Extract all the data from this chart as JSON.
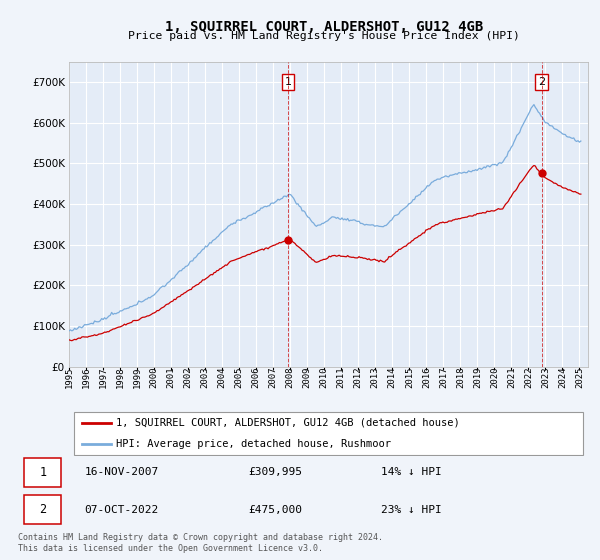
{
  "title": "1, SQUIRREL COURT, ALDERSHOT, GU12 4GB",
  "subtitle": "Price paid vs. HM Land Registry's House Price Index (HPI)",
  "background_color": "#f0f4fa",
  "plot_bg_color": "#e4ecf7",
  "grid_color": "#ffffff",
  "sale1_date": "16-NOV-2007",
  "sale1_price": 309995,
  "sale1_label": "14% ↓ HPI",
  "sale2_date": "07-OCT-2022",
  "sale2_price": 475000,
  "sale2_label": "23% ↓ HPI",
  "hpi_label": "HPI: Average price, detached house, Rushmoor",
  "property_label": "1, SQUIRREL COURT, ALDERSHOT, GU12 4GB (detached house)",
  "footer": "Contains HM Land Registry data © Crown copyright and database right 2024.\nThis data is licensed under the Open Government Licence v3.0.",
  "hpi_color": "#7aacdc",
  "property_color": "#cc0000",
  "ylim": [
    0,
    750000
  ],
  "sale1_x": 2007.88,
  "sale2_x": 2022.77,
  "legend_bg": "#ffffff",
  "annot_bg": "#ffffff"
}
